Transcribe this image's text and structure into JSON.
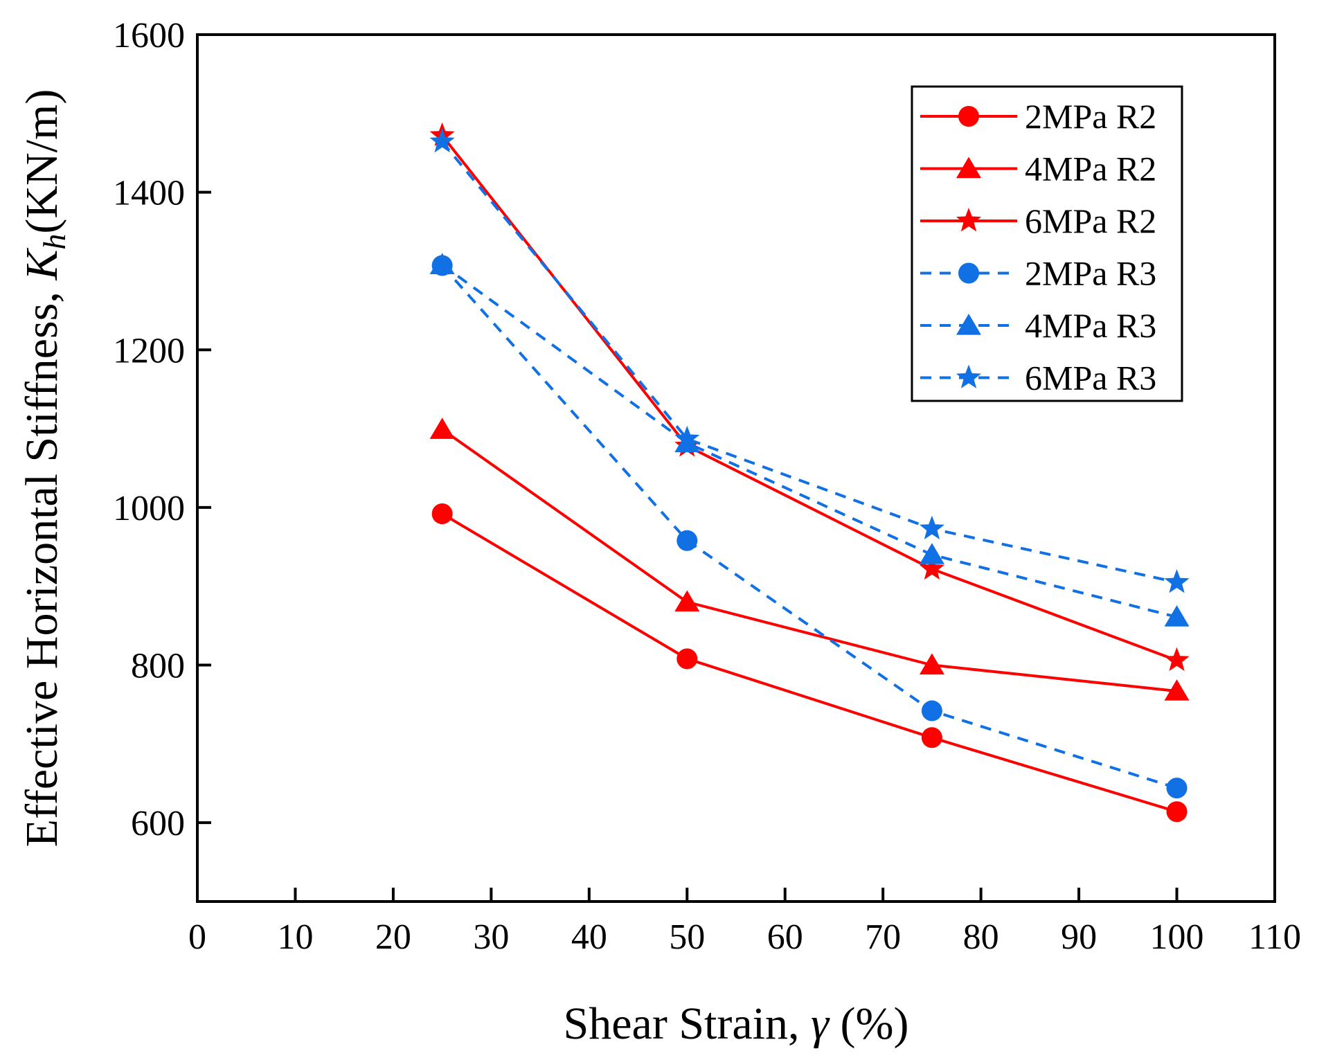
{
  "chart_data": {
    "type": "line",
    "title": "",
    "xlabel": {
      "prefix": "Shear Strain, ",
      "symbol": "γ",
      "suffix": " (%)"
    },
    "ylabel": {
      "prefix": "Effective Horizontal Stiffness, ",
      "symbol": "K",
      "subscript": "h",
      "suffix": "(KN/m)"
    },
    "xlim": [
      0,
      110
    ],
    "ylim": [
      500,
      1600
    ],
    "xticks": [
      0,
      10,
      20,
      30,
      40,
      50,
      60,
      70,
      80,
      90,
      100,
      110
    ],
    "yticks": [
      600,
      800,
      1000,
      1200,
      1400,
      1600
    ],
    "grid": false,
    "legend_position": "top-right",
    "x": [
      25,
      50,
      75,
      100
    ],
    "series": [
      {
        "name": "2MPa R2",
        "marker": "circle",
        "line": "solid",
        "color": "#ff0000",
        "values": [
          992,
          808,
          708,
          614
        ]
      },
      {
        "name": "4MPa R2",
        "marker": "triangle",
        "line": "solid",
        "color": "#ff0000",
        "values": [
          1099,
          880,
          800,
          767
        ]
      },
      {
        "name": "6MPa R2",
        "marker": "star",
        "line": "solid",
        "color": "#ff0000",
        "values": [
          1472,
          1078,
          922,
          806
        ]
      },
      {
        "name": "2MPa R3",
        "marker": "circle",
        "line": "dashed",
        "color": "#1170e4",
        "values": [
          1307,
          958,
          742,
          644
        ]
      },
      {
        "name": "4MPa R3",
        "marker": "triangle",
        "line": "dashed",
        "color": "#1170e4",
        "values": [
          1308,
          1082,
          940,
          861
        ]
      },
      {
        "name": "6MPa R3",
        "marker": "star",
        "line": "dashed",
        "color": "#1170e4",
        "values": [
          1464,
          1087,
          973,
          905
        ]
      }
    ]
  }
}
